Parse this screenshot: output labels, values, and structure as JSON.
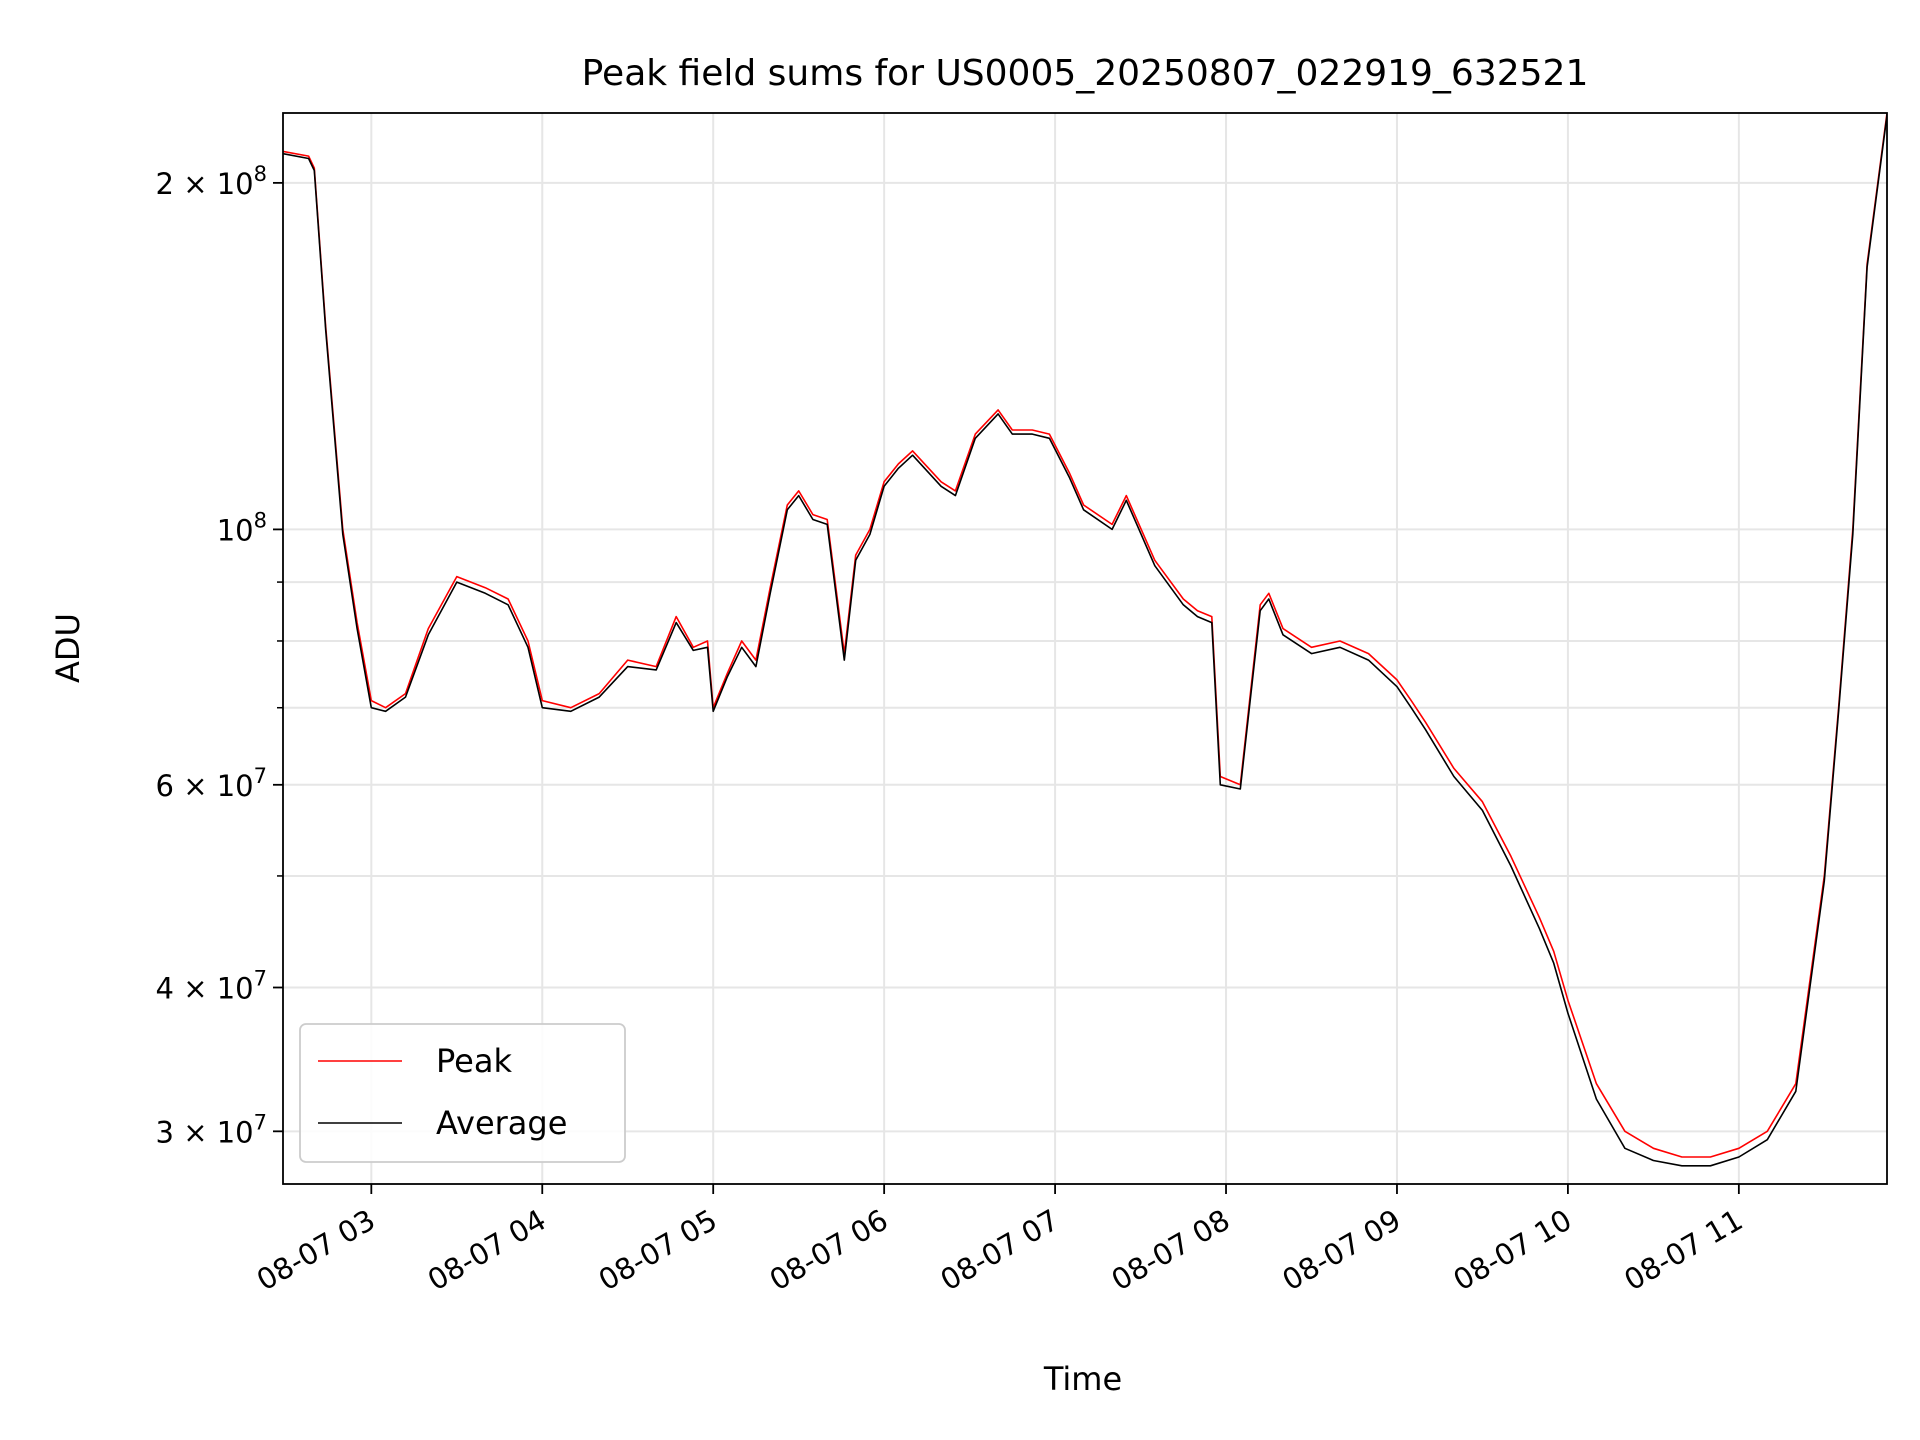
{
  "chart_data": {
    "type": "line",
    "title": "Peak field sums for US0005_20250807_022919_632521",
    "xlabel": "Time",
    "ylabel": "ADU",
    "y_scale": "log",
    "ylim": [
      27000000,
      230000000
    ],
    "xlim": [
      "08-07 02:29",
      "08-07 11:52"
    ],
    "grid": true,
    "legend": {
      "placement": "lower left",
      "entries": [
        "Peak",
        "Average"
      ]
    },
    "x_ticks": [
      "08-07 03",
      "08-07 04",
      "08-07 05",
      "08-07 06",
      "08-07 07",
      "08-07 08",
      "08-07 09",
      "08-07 10",
      "08-07 11"
    ],
    "y_tick_labels": [
      {
        "value": 200000000,
        "mantissa": "2",
        "exp": "8"
      },
      {
        "value": 100000000,
        "mantissa": "",
        "exp": "8"
      },
      {
        "value": 60000000,
        "mantissa": "6",
        "exp": "7"
      },
      {
        "value": 40000000,
        "mantissa": "4",
        "exp": "7"
      },
      {
        "value": 30000000,
        "mantissa": "3",
        "exp": "7"
      }
    ],
    "y_minor_ticks": [
      50000000,
      70000000,
      80000000,
      90000000
    ],
    "x": [
      "08-07 02:29",
      "08-07 02:38",
      "08-07 02:40",
      "08-07 02:44",
      "08-07 02:50",
      "08-07 02:55",
      "08-07 03:00",
      "08-07 03:05",
      "08-07 03:12",
      "08-07 03:20",
      "08-07 03:30",
      "08-07 03:40",
      "08-07 03:48",
      "08-07 03:55",
      "08-07 04:00",
      "08-07 04:10",
      "08-07 04:20",
      "08-07 04:30",
      "08-07 04:40",
      "08-07 04:47",
      "08-07 04:53",
      "08-07 04:58",
      "08-07 05:00",
      "08-07 05:05",
      "08-07 05:10",
      "08-07 05:15",
      "08-07 05:20",
      "08-07 05:26",
      "08-07 05:30",
      "08-07 05:35",
      "08-07 05:40",
      "08-07 05:46",
      "08-07 05:50",
      "08-07 05:55",
      "08-07 06:00",
      "08-07 06:05",
      "08-07 06:10",
      "08-07 06:20",
      "08-07 06:25",
      "08-07 06:32",
      "08-07 06:40",
      "08-07 06:45",
      "08-07 06:52",
      "08-07 06:58",
      "08-07 07:05",
      "08-07 07:10",
      "08-07 07:20",
      "08-07 07:25",
      "08-07 07:35",
      "08-07 07:45",
      "08-07 07:50",
      "08-07 07:55",
      "08-07 07:58",
      "08-07 08:05",
      "08-07 08:12",
      "08-07 08:15",
      "08-07 08:20",
      "08-07 08:30",
      "08-07 08:40",
      "08-07 08:50",
      "08-07 09:00",
      "08-07 09:05",
      "08-07 09:10",
      "08-07 09:20",
      "08-07 09:30",
      "08-07 09:40",
      "08-07 09:50",
      "08-07 09:55",
      "08-07 10:00",
      "08-07 10:10",
      "08-07 10:20",
      "08-07 10:30",
      "08-07 10:40",
      "08-07 10:50",
      "08-07 11:00",
      "08-07 11:10",
      "08-07 11:20",
      "08-07 11:30",
      "08-07 11:35",
      "08-07 11:40",
      "08-07 11:45",
      "08-07 11:52"
    ],
    "series": [
      {
        "name": "Peak",
        "color": "#ff0000",
        "values": [
          213000000,
          211000000,
          206000000,
          150000000,
          100000000,
          83000000,
          71000000,
          70000000,
          72000000,
          82000000,
          91000000,
          89000000,
          87000000,
          80000000,
          71000000,
          70000000,
          72000000,
          77000000,
          76000000,
          84000000,
          79000000,
          80000000,
          70000000,
          75000000,
          80000000,
          77000000,
          89000000,
          105000000,
          108000000,
          103000000,
          102000000,
          78000000,
          95000000,
          100000000,
          110000000,
          114000000,
          117000000,
          110000000,
          108000000,
          121000000,
          127000000,
          122000000,
          122000000,
          121000000,
          112000000,
          105000000,
          101000000,
          107000000,
          94000000,
          87000000,
          85000000,
          84000000,
          61000000,
          60000000,
          86000000,
          88000000,
          82000000,
          79000000,
          80000000,
          78000000,
          74000000,
          71000000,
          68000000,
          62000000,
          58000000,
          52000000,
          46000000,
          43000000,
          39000000,
          33000000,
          30000000,
          29000000,
          28500000,
          28500000,
          29000000,
          30000000,
          33000000,
          50000000,
          70000000,
          100000000,
          170000000,
          230000000
        ]
      },
      {
        "name": "Average",
        "color": "#000000",
        "values": [
          212000000,
          210000000,
          205000000,
          149000000,
          99000000,
          82000000,
          70000000,
          69500000,
          71500000,
          81000000,
          90000000,
          88000000,
          86000000,
          79000000,
          70000000,
          69500000,
          71500000,
          76000000,
          75500000,
          83000000,
          78500000,
          79000000,
          69500000,
          74500000,
          79000000,
          76000000,
          88000000,
          104000000,
          107000000,
          102000000,
          101000000,
          77000000,
          94000000,
          99000000,
          109000000,
          113000000,
          116000000,
          109000000,
          107000000,
          120000000,
          126000000,
          121000000,
          121000000,
          120000000,
          111000000,
          104000000,
          100000000,
          106000000,
          93000000,
          86000000,
          84000000,
          83000000,
          60000000,
          59500000,
          85000000,
          87000000,
          81000000,
          78000000,
          79000000,
          77000000,
          73000000,
          70000000,
          67000000,
          61000000,
          57000000,
          51000000,
          45000000,
          42000000,
          38000000,
          32000000,
          29000000,
          28300000,
          28000000,
          28000000,
          28500000,
          29500000,
          32500000,
          49500000,
          69500000,
          99000000,
          169000000,
          229000000
        ]
      }
    ]
  }
}
